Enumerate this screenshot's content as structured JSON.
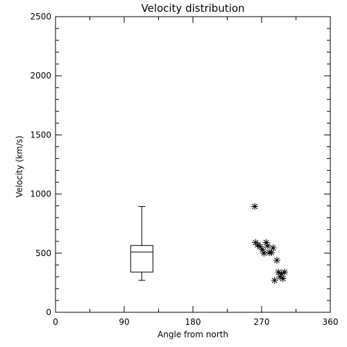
{
  "chart_data": {
    "type": "box+scatter",
    "title": "Velocity distribution",
    "xlabel": "Angle from north",
    "ylabel": "Velocity (km/s)",
    "xlim": [
      0,
      360
    ],
    "ylim": [
      0,
      2500
    ],
    "xticks": [
      0,
      90,
      180,
      270,
      360
    ],
    "yticks": [
      0,
      500,
      1000,
      1500,
      2000,
      2500
    ],
    "box": {
      "x": 113,
      "whisker_low": 270,
      "q1": 340,
      "median": 510,
      "q3": 565,
      "whisker_high": 895
    },
    "points": [
      {
        "x": 261,
        "y": 895
      },
      {
        "x": 262,
        "y": 590
      },
      {
        "x": 265,
        "y": 570
      },
      {
        "x": 268,
        "y": 555
      },
      {
        "x": 271,
        "y": 530
      },
      {
        "x": 273,
        "y": 500
      },
      {
        "x": 276,
        "y": 590
      },
      {
        "x": 278,
        "y": 560
      },
      {
        "x": 280,
        "y": 505
      },
      {
        "x": 283,
        "y": 505
      },
      {
        "x": 285,
        "y": 545
      },
      {
        "x": 287,
        "y": 270
      },
      {
        "x": 290,
        "y": 440
      },
      {
        "x": 292,
        "y": 340
      },
      {
        "x": 294,
        "y": 300
      },
      {
        "x": 296,
        "y": 325
      },
      {
        "x": 298,
        "y": 285
      },
      {
        "x": 300,
        "y": 340
      }
    ],
    "grid": false,
    "legend": "none",
    "colors": {
      "foreground": "#000000",
      "background": "#ffffff"
    }
  }
}
